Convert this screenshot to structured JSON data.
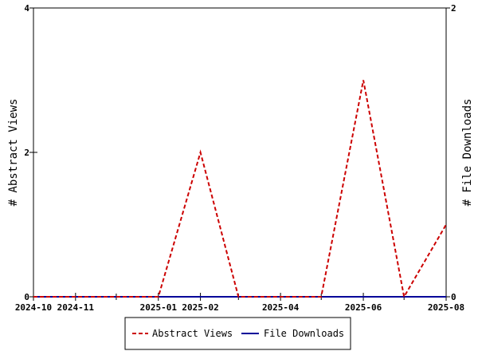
{
  "chart_data": {
    "type": "line",
    "x_axis": {
      "type": "date",
      "min": "2024-10-01",
      "max": "2025-08-01",
      "tick_labels": [
        "2024-10",
        "2024-11",
        "2025-01",
        "2025-02",
        "2025-04",
        "2025-06",
        "2025-08"
      ],
      "minor_ticks": [
        "2024-12",
        "2025-03",
        "2025-05",
        "2025-07"
      ]
    },
    "y_left": {
      "label": "# Abstract Views",
      "ylim": [
        0,
        4
      ],
      "ticks": [
        0,
        2,
        4
      ]
    },
    "y_right": {
      "label": "# File Downloads",
      "ylim": [
        0,
        2
      ],
      "ticks": [
        0,
        2
      ]
    },
    "series": [
      {
        "name": "Abstract Views",
        "axis": "left",
        "color": "#cc0000",
        "style": "dashed",
        "points": [
          [
            "2024-10-01",
            0
          ],
          [
            "2024-11-01",
            0
          ],
          [
            "2024-12-01",
            0
          ],
          [
            "2025-01-01",
            0
          ],
          [
            "2025-02-01",
            2
          ],
          [
            "2025-03-01",
            0
          ],
          [
            "2025-04-01",
            0
          ],
          [
            "2025-05-01",
            0
          ],
          [
            "2025-06-01",
            3
          ],
          [
            "2025-07-01",
            0
          ],
          [
            "2025-08-01",
            1
          ]
        ]
      },
      {
        "name": "File Downloads",
        "axis": "right",
        "color": "#000099",
        "style": "solid",
        "points": [
          [
            "2024-10-01",
            0
          ],
          [
            "2024-11-01",
            0
          ],
          [
            "2024-12-01",
            0
          ],
          [
            "2025-01-01",
            0
          ],
          [
            "2025-02-01",
            0
          ],
          [
            "2025-03-01",
            0
          ],
          [
            "2025-04-01",
            0
          ],
          [
            "2025-05-01",
            0
          ],
          [
            "2025-06-01",
            0
          ],
          [
            "2025-07-01",
            0
          ],
          [
            "2025-08-01",
            0
          ]
        ]
      }
    ],
    "legend": {
      "placement": "bottom-center",
      "entries": [
        "Abstract Views",
        "File Downloads"
      ]
    },
    "grid": false
  }
}
